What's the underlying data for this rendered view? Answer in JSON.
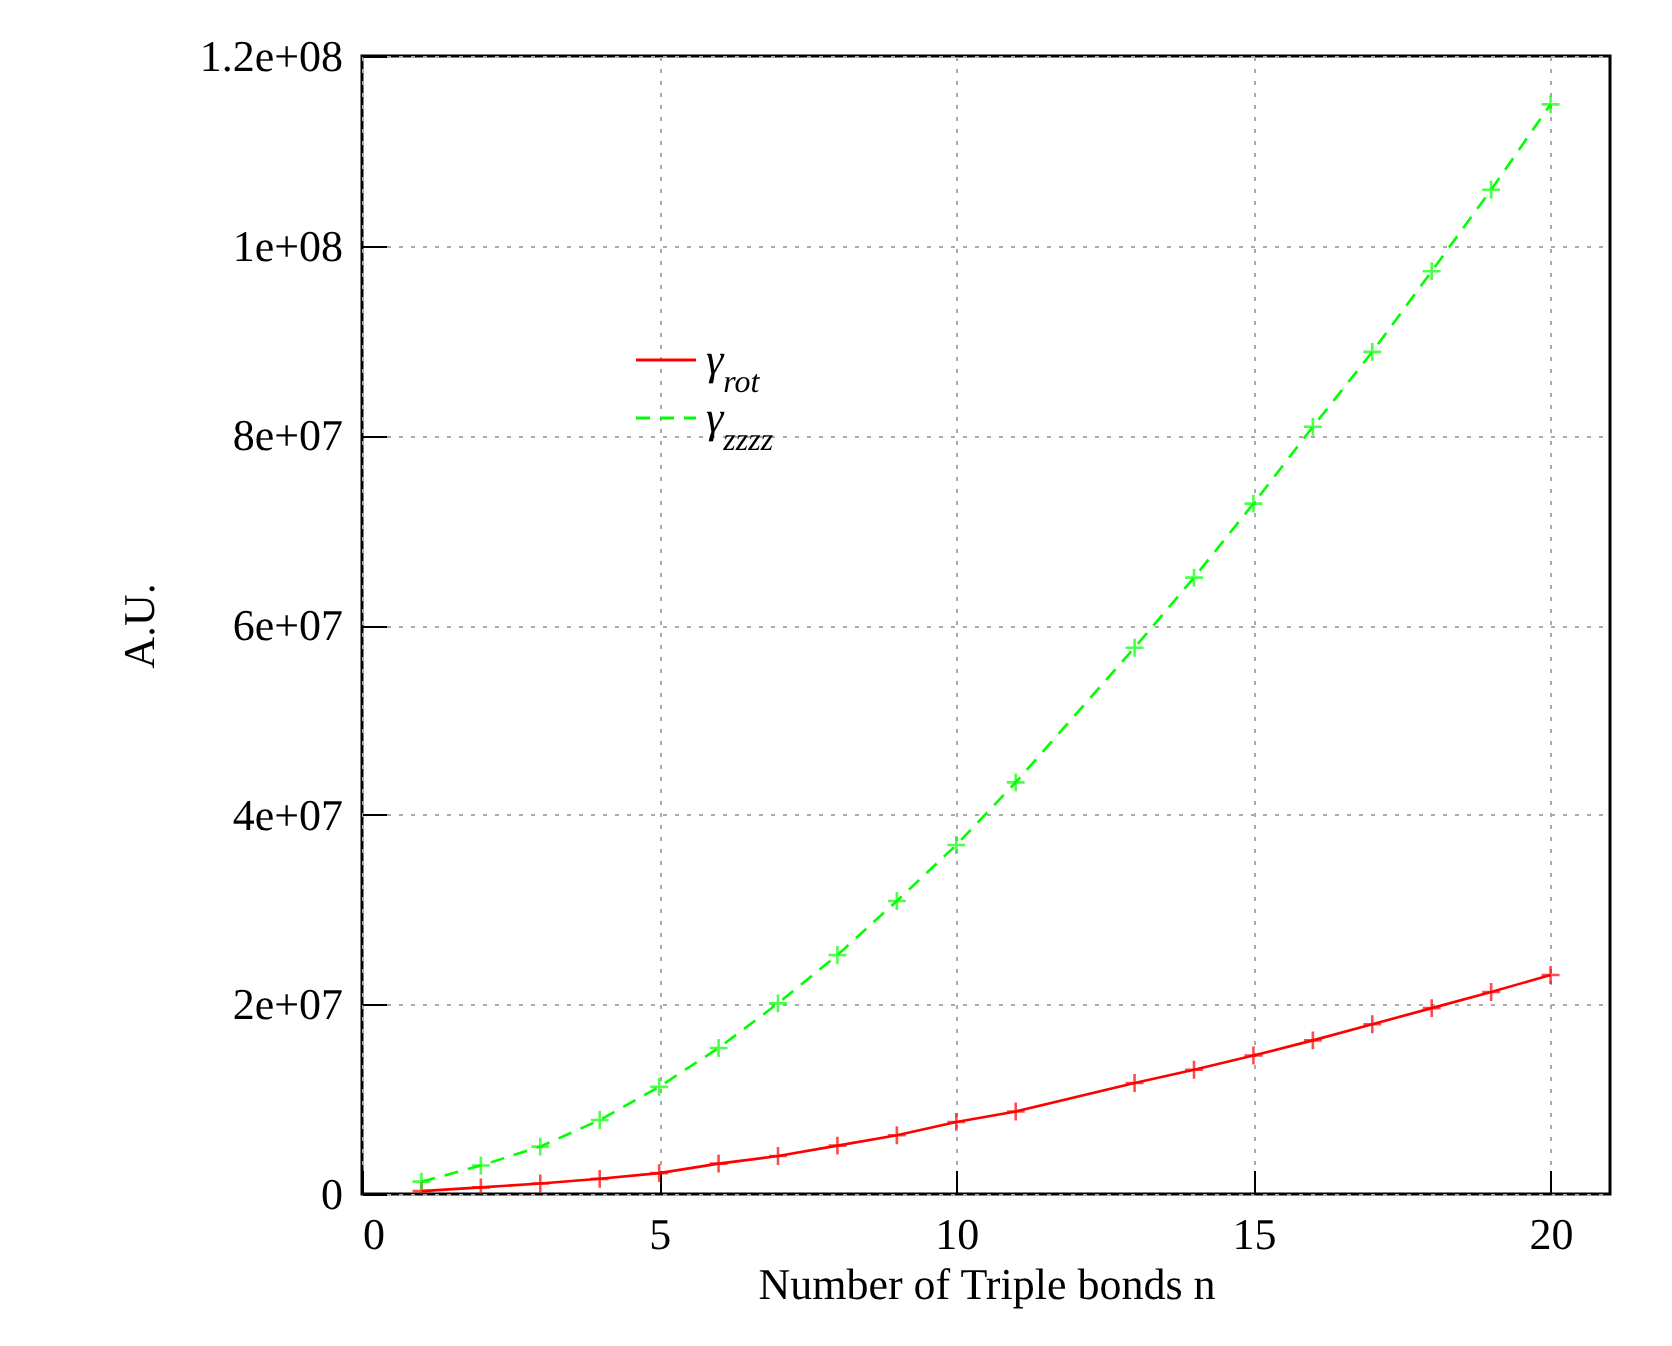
{
  "chart_data": {
    "type": "line",
    "xlabel": "Number of Triple bonds n",
    "ylabel": "A.U.",
    "xlim": [
      0,
      21
    ],
    "xticks": [
      0,
      5,
      10,
      15,
      20
    ],
    "ylim": [
      0,
      120000000
    ],
    "yticks": [
      0,
      {
        "value": 20000000,
        "label": "2e+07"
      },
      {
        "value": 40000000,
        "label": "4e+07"
      },
      {
        "value": 60000000,
        "label": "6e+07"
      },
      {
        "value": 80000000,
        "label": "8e+07"
      },
      {
        "value": 100000000,
        "label": "1e+08"
      },
      {
        "value": 120000000,
        "label": "1.2e+08"
      }
    ],
    "grid": true,
    "legend": "top left",
    "marker": "cross",
    "series": [
      {
        "name": "γ$_{rot}$",
        "color": "#ff0000",
        "line_style": "solid",
        "x": [
          1,
          2,
          3,
          4,
          5,
          6,
          7,
          8,
          9,
          10,
          11,
          13,
          14,
          15,
          16,
          17,
          18,
          19,
          20
        ],
        "values": [
          300000,
          700000,
          1100000,
          1600000,
          2200000,
          3200000,
          4000000,
          5100000,
          6200000,
          7600000,
          8700000,
          11700000,
          13100000,
          14600000,
          16200000,
          17900000,
          19600000,
          21300000,
          23100000
        ]
      },
      {
        "name": "γ$_{zzzz}$",
        "color": "#00ff00",
        "line_style": "dashed",
        "x": [
          1,
          2,
          3,
          4,
          5,
          6,
          7,
          8,
          9,
          10,
          11,
          13,
          14,
          15,
          16,
          17,
          18,
          19,
          20
        ],
        "values": [
          1300000,
          3000000,
          5000000,
          7800000,
          11300000,
          15400000,
          20100000,
          25200000,
          30900000,
          36800000,
          43400000,
          57600000,
          65000000,
          72800000,
          80900000,
          88800000,
          97300000,
          105900000,
          114900000
        ]
      }
    ]
  }
}
